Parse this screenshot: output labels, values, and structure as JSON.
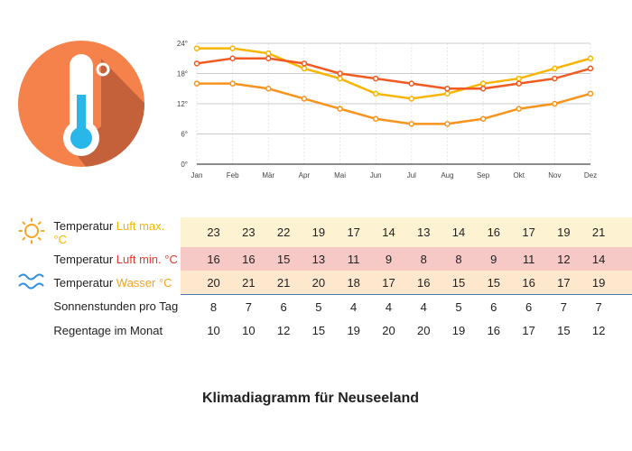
{
  "chart_data": {
    "type": "line",
    "categories": [
      "Jan",
      "Feb",
      "Mär",
      "Apr",
      "Mai",
      "Jun",
      "Jul",
      "Aug",
      "Sep",
      "Okt",
      "Nov",
      "Dez"
    ],
    "ylim": [
      0,
      24
    ],
    "yticks": [
      "0°",
      "6°",
      "12°",
      "18°",
      "24°"
    ],
    "grid": true,
    "series": [
      {
        "values": [
          23,
          23,
          22,
          19,
          17,
          14,
          13,
          14,
          16,
          17,
          19,
          21
        ],
        "color": "#f7b500"
      },
      {
        "values": [
          20,
          21,
          21,
          20,
          18,
          17,
          16,
          15,
          15,
          16,
          17,
          19
        ],
        "color": "#f15a22"
      },
      {
        "values": [
          16,
          16,
          15,
          13,
          11,
          9,
          8,
          8,
          9,
          11,
          12,
          14
        ],
        "color": "#f7941d"
      }
    ]
  },
  "table": {
    "rows": [
      {
        "prefix": "Temperatur ",
        "highlight": "Luft max. °C",
        "highlight_color": "#f7b500",
        "icon": "sun-icon",
        "values": [
          23,
          23,
          22,
          19,
          17,
          14,
          13,
          14,
          16,
          17,
          19,
          21
        ]
      },
      {
        "prefix": "Temperatur ",
        "highlight": "Luft min. °C",
        "highlight_color": "#e8352b",
        "icon": "",
        "values": [
          16,
          16,
          15,
          13,
          11,
          9,
          8,
          8,
          9,
          11,
          12,
          14
        ]
      },
      {
        "prefix": "Temperatur ",
        "highlight": "Wasser °C",
        "highlight_color": "#f7a21b",
        "icon": "waves-icon",
        "values": [
          20,
          21,
          21,
          20,
          18,
          17,
          16,
          15,
          15,
          16,
          17,
          19
        ]
      },
      {
        "prefix": "Sonnenstunden pro Tag",
        "highlight": "",
        "icon": "",
        "values": [
          8,
          7,
          6,
          5,
          4,
          4,
          4,
          5,
          6,
          6,
          7,
          7
        ]
      },
      {
        "prefix": "Regentage im Monat",
        "highlight": "",
        "icon": "",
        "values": [
          10,
          10,
          12,
          15,
          19,
          20,
          20,
          19,
          16,
          17,
          15,
          12
        ]
      }
    ]
  },
  "title": "Klimadiagramm für Neuseeland",
  "colors": {
    "circle": "#f5824a",
    "shadow": "#c4603a",
    "thermo_fill": "#29b6e8"
  }
}
